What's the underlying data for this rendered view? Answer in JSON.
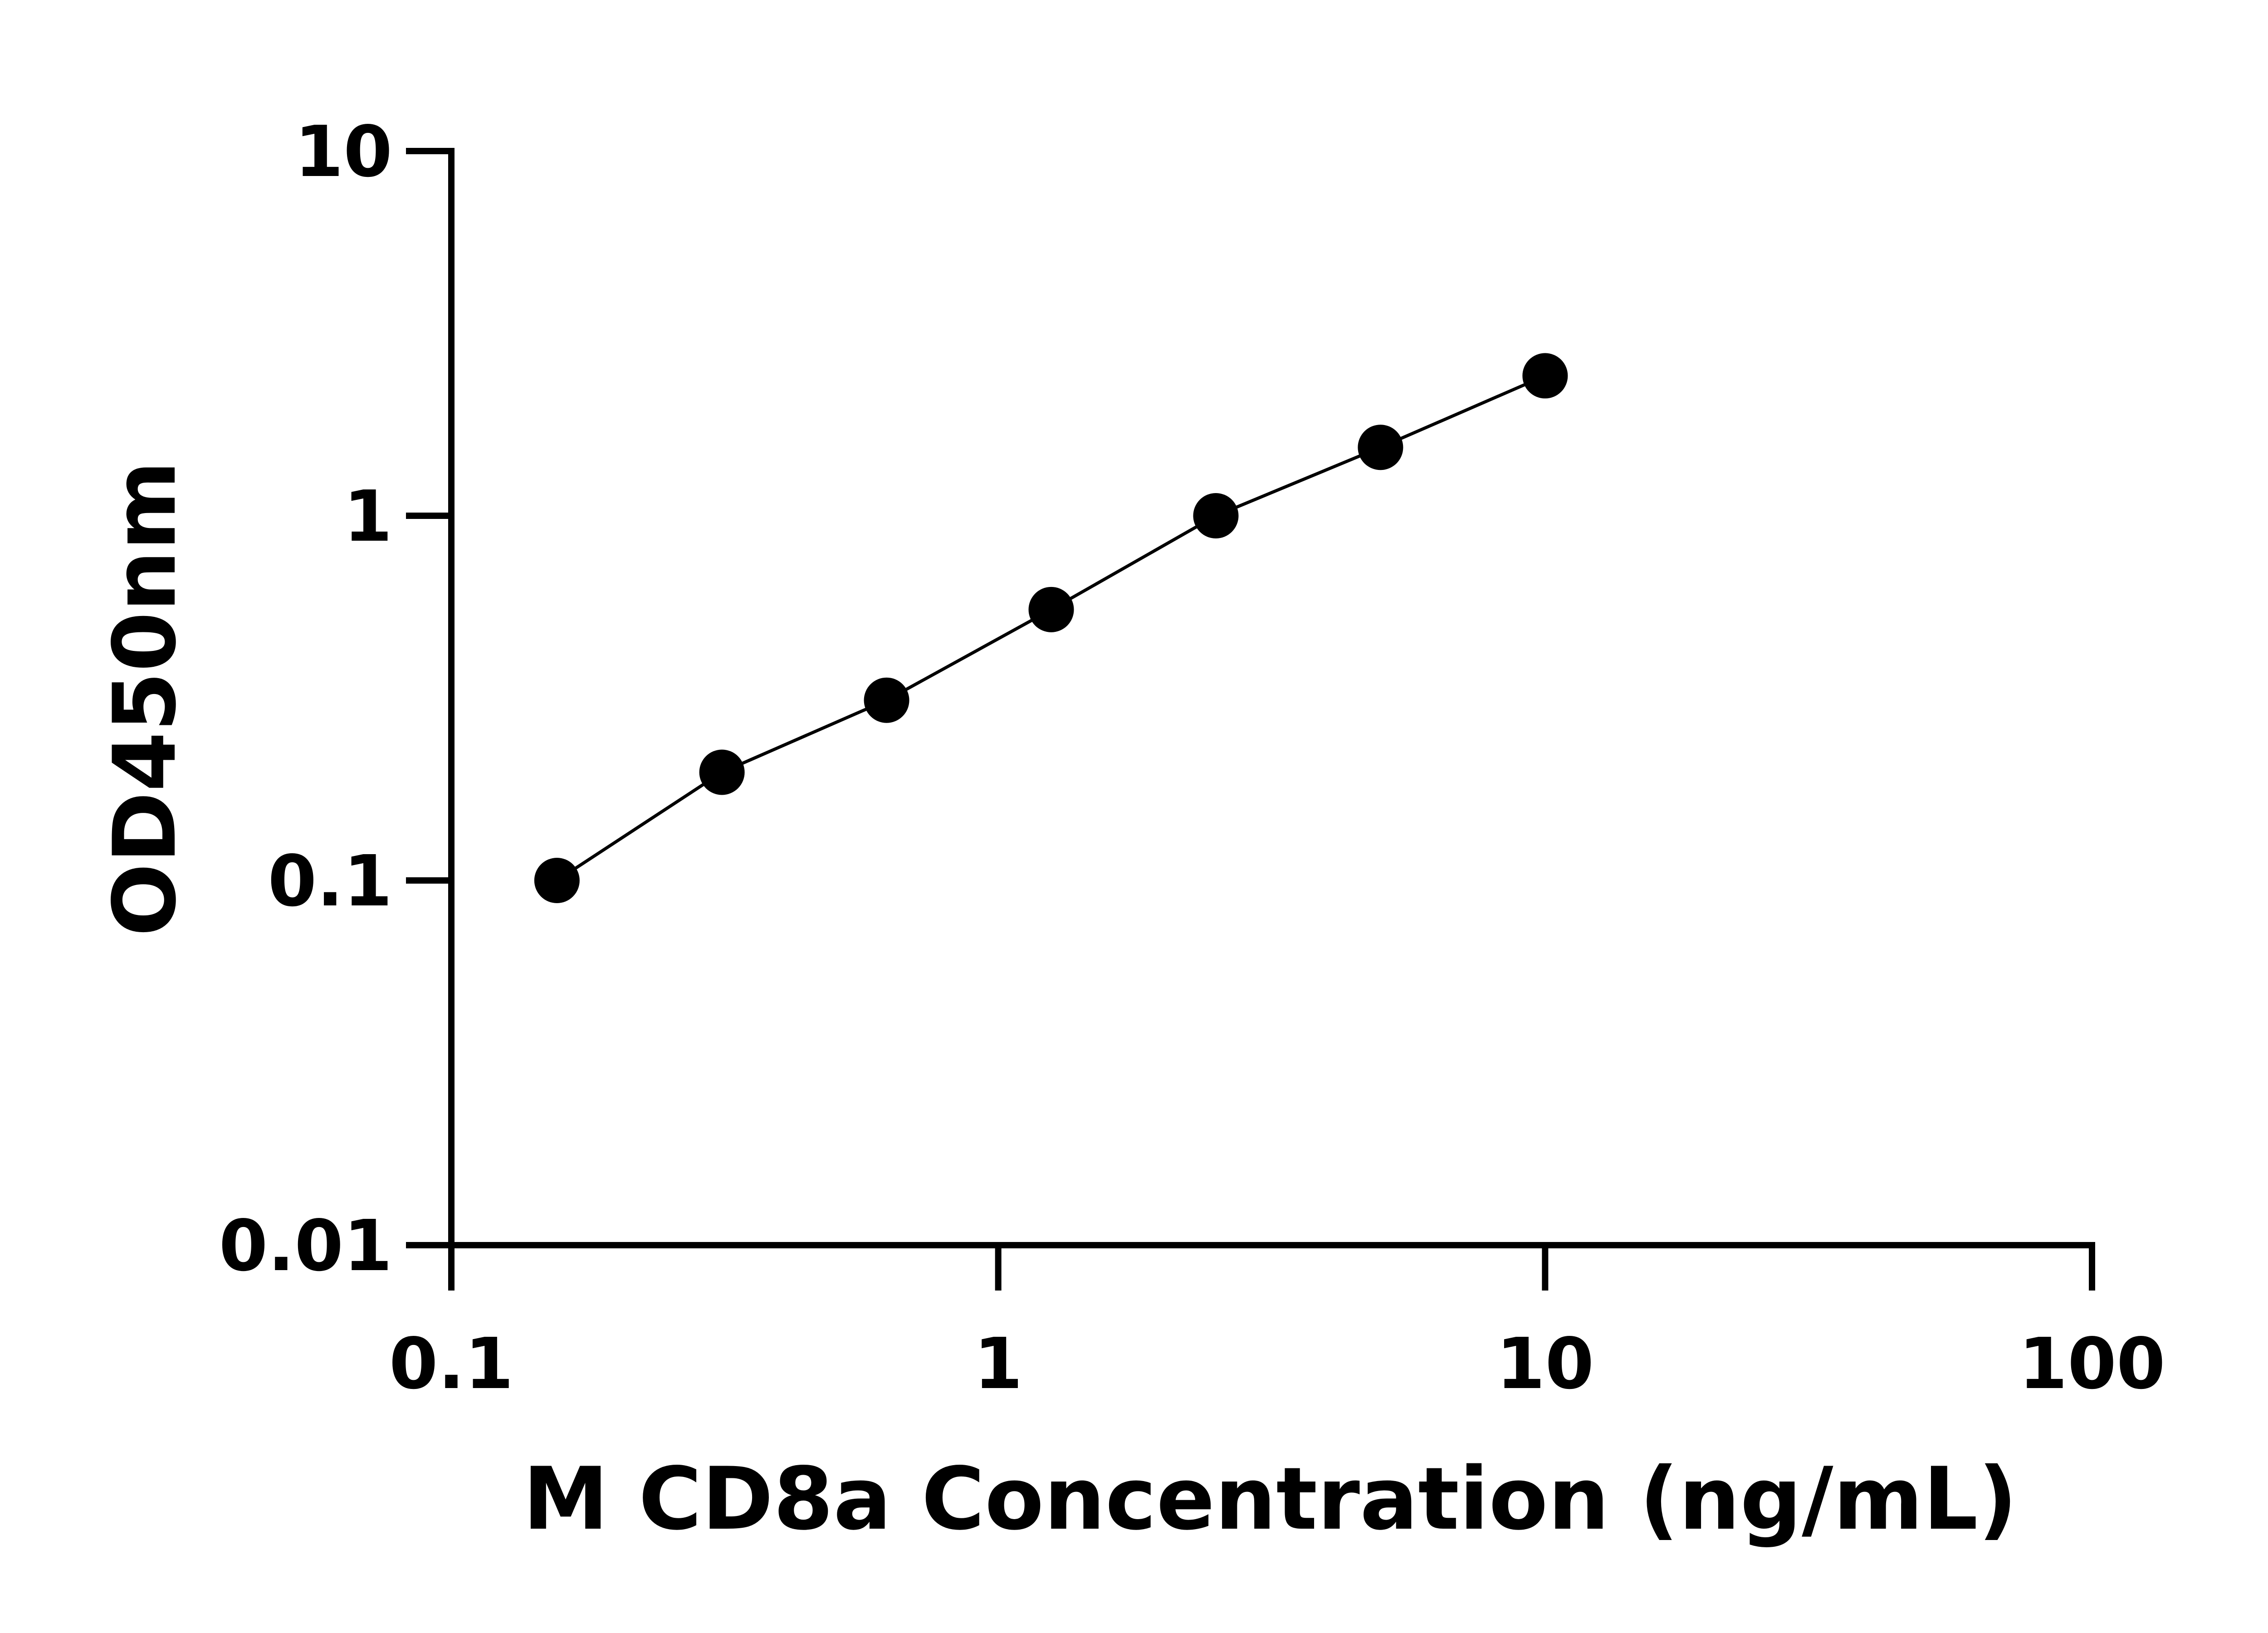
{
  "chart_data": {
    "type": "scatter",
    "title": "",
    "xlabel": "M CD8a Concentration (ng/mL)",
    "ylabel": "OD450nm",
    "x_scale": "log",
    "y_scale": "log",
    "xlim": [
      0.1,
      100
    ],
    "ylim": [
      0.01,
      10
    ],
    "x_ticks": [
      0.1,
      1,
      10,
      100
    ],
    "x_tick_labels": [
      "0.1",
      "1",
      "10",
      "100"
    ],
    "y_ticks": [
      0.01,
      0.1,
      1,
      10
    ],
    "y_tick_labels": [
      "0.01",
      "0.1",
      "1",
      "10"
    ],
    "grid": false,
    "connected_line": true,
    "marker_color": "#000000",
    "series": [
      {
        "x": [
          0.156,
          0.3125,
          0.625,
          1.25,
          2.5,
          5,
          10
        ],
        "y": [
          0.1,
          0.198,
          0.312,
          0.553,
          1.0,
          1.54,
          2.42
        ]
      }
    ]
  }
}
